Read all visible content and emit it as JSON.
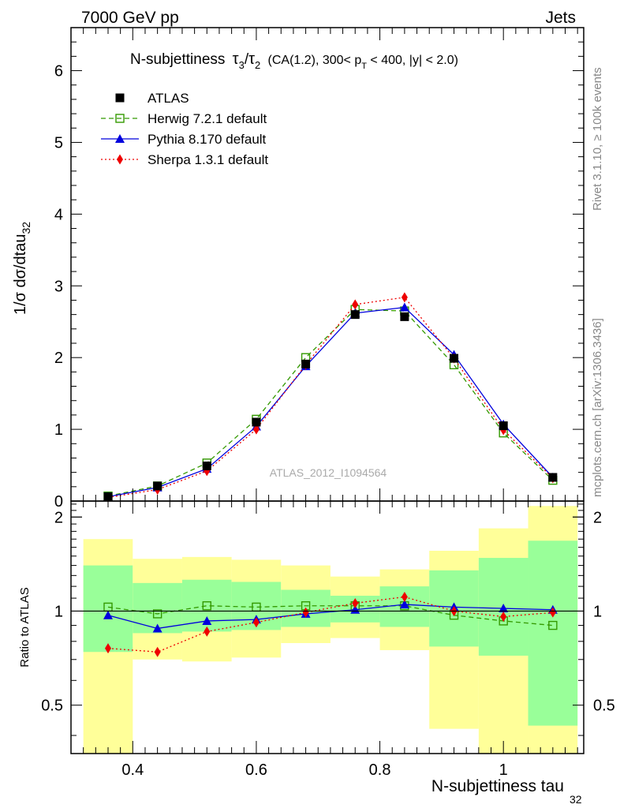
{
  "header": {
    "energy_label": "7000 GeV pp",
    "process_label": "Jets"
  },
  "side_labels": {
    "rivet": "Rivet 3.1.10, ≥ 100k events",
    "mcplots": "mcplots.cern.ch [arXiv:1306.3436]"
  },
  "colors": {
    "herwig": "#339900",
    "pythia": "#0000dd",
    "sherpa": "#ee0000",
    "data": "#000000",
    "band_yellow": "#ffff99",
    "band_green": "#99ff99",
    "watermark": "#aaaaaa"
  },
  "chart_data": [
    {
      "type": "line",
      "panel": "main",
      "title": "N-subjettiness τ₃/τ₂ (CA(1.2), 300< p_T < 400, |y| < 2.0)",
      "title_main": "N-subjettiness",
      "title_rest": "(CA(1.2), 300< p",
      "title_sub": "T",
      "title_end": " < 400, |y| < 2.0)",
      "ylabel": "1/σ dσ/dtau",
      "ylabel_sub": "32",
      "watermark": "ATLAS_2012_I1094564",
      "xlim": [
        0.3,
        1.13
      ],
      "ylim": [
        0,
        6.6
      ],
      "yticks": [
        0,
        1,
        2,
        3,
        4,
        5,
        6
      ],
      "legend_placement": "top-left",
      "x": [
        0.36,
        0.44,
        0.52,
        0.6,
        0.68,
        0.76,
        0.84,
        0.92,
        1.0,
        1.08
      ],
      "series": [
        {
          "name": "ATLAS",
          "key": "data",
          "values": [
            0.06,
            0.21,
            0.49,
            1.1,
            1.91,
            2.6,
            2.57,
            1.99,
            1.05,
            0.33
          ]
        },
        {
          "name": "Herwig 7.2.1 default",
          "key": "herwig",
          "values": [
            0.07,
            0.21,
            0.53,
            1.14,
            2.0,
            2.67,
            2.65,
            1.9,
            0.95,
            0.29
          ]
        },
        {
          "name": "Pythia 8.170 default",
          "key": "pythia",
          "values": [
            0.06,
            0.19,
            0.45,
            1.04,
            1.88,
            2.62,
            2.7,
            2.04,
            1.07,
            0.33
          ]
        },
        {
          "name": "Sherpa 1.3.1 default",
          "key": "sherpa",
          "values": [
            0.05,
            0.16,
            0.42,
            1.0,
            1.9,
            2.74,
            2.84,
            1.99,
            0.99,
            0.32
          ]
        }
      ]
    },
    {
      "type": "line",
      "panel": "ratio",
      "ylabel": "Ratio to ATLAS",
      "xlabel": "N-subjettiness tau",
      "xlabel_sub": "32",
      "xlim": [
        0.3,
        1.13
      ],
      "ylim": [
        0.35,
        2.25
      ],
      "yticks": [
        0.5,
        1,
        2
      ],
      "xticks": [
        0.4,
        0.6,
        0.8,
        1
      ],
      "bins": [
        [
          0.32,
          0.4
        ],
        [
          0.4,
          0.48
        ],
        [
          0.48,
          0.56
        ],
        [
          0.56,
          0.64
        ],
        [
          0.64,
          0.72
        ],
        [
          0.72,
          0.8
        ],
        [
          0.8,
          0.88
        ],
        [
          0.88,
          0.96
        ],
        [
          0.96,
          1.04
        ],
        [
          1.04,
          1.12
        ]
      ],
      "band_outer": [
        [
          0.0,
          1.7
        ],
        [
          0.7,
          1.47
        ],
        [
          0.69,
          1.49
        ],
        [
          0.71,
          1.46
        ],
        [
          0.79,
          1.4
        ],
        [
          0.82,
          1.29
        ],
        [
          0.75,
          1.36
        ],
        [
          0.42,
          1.56
        ],
        [
          0.0,
          1.84
        ],
        [
          0.0,
          2.17
        ]
      ],
      "band_inner": [
        [
          0.74,
          1.4
        ],
        [
          0.85,
          1.23
        ],
        [
          0.86,
          1.26
        ],
        [
          0.87,
          1.24
        ],
        [
          0.89,
          1.17
        ],
        [
          0.92,
          1.12
        ],
        [
          0.89,
          1.2
        ],
        [
          0.77,
          1.35
        ],
        [
          0.72,
          1.48
        ],
        [
          0.43,
          1.68
        ]
      ],
      "x": [
        0.36,
        0.44,
        0.52,
        0.6,
        0.68,
        0.76,
        0.84,
        0.92,
        1.0,
        1.08
      ],
      "series": [
        {
          "name": "Herwig 7.2.1 default",
          "key": "herwig",
          "values": [
            1.03,
            0.98,
            1.04,
            1.03,
            1.04,
            1.04,
            1.04,
            0.97,
            0.93,
            0.9
          ]
        },
        {
          "name": "Pythia 8.170 default",
          "key": "pythia",
          "values": [
            0.97,
            0.88,
            0.93,
            0.94,
            0.98,
            1.01,
            1.05,
            1.03,
            1.02,
            1.01
          ]
        },
        {
          "name": "Sherpa 1.3.1 default",
          "key": "sherpa",
          "values": [
            0.76,
            0.74,
            0.86,
            0.92,
            0.99,
            1.06,
            1.11,
            1.0,
            0.96,
            0.99
          ]
        }
      ]
    }
  ]
}
